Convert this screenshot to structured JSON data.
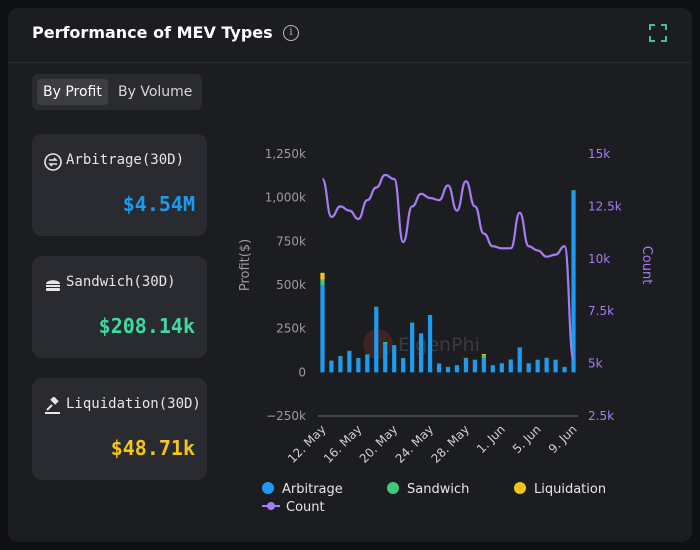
{
  "header": {
    "title": "Performance of MEV Types",
    "info_icon": "info-icon",
    "expand_icon": "expand-icon"
  },
  "toggle": {
    "options": [
      "By Profit",
      "By Volume"
    ],
    "active": "By Profit"
  },
  "stats": [
    {
      "label": "Arbitrage(30D)",
      "value": "$4.54M",
      "color": "#1a9bf0",
      "icon": "arbitrage-icon"
    },
    {
      "label": "Sandwich(30D)",
      "value": "$208.14k",
      "color": "#3fd9a1",
      "icon": "sandwich-icon"
    },
    {
      "label": "Liquidation(30D)",
      "value": "$48.71k",
      "color": "#f5c518",
      "icon": "gavel-icon"
    }
  ],
  "watermark": "EigenPhi",
  "colors": {
    "arbitrage": "#1e9bf0",
    "sandwich": "#3ec97e",
    "liquidation": "#f5c518",
    "count": "#a87bf2"
  },
  "chart_data": {
    "type": "bar",
    "stacked": true,
    "x_tick_labels": [
      "12. May",
      "16. May",
      "20. May",
      "24. May",
      "28. May",
      "1. Jun",
      "5. Jun",
      "9. Jun"
    ],
    "y_left": {
      "label": "Profit($)",
      "ticks": [
        "1,250k",
        "1,000k",
        "750k",
        "500k",
        "250k",
        "0",
        "−250k"
      ],
      "range": [
        -250000,
        1250000
      ]
    },
    "y_right": {
      "label": "Count",
      "ticks": [
        "15k",
        "12.5k",
        "10k",
        "7.5k",
        "5k",
        "2.5k"
      ],
      "range": [
        2500,
        15000
      ]
    },
    "grid": false,
    "legend_position": "bottom",
    "series": [
      {
        "name": "Arbitrage",
        "axis": "left",
        "kind": "bar",
        "values": [
          500000,
          65000,
          90000,
          120000,
          80000,
          100000,
          370000,
          165000,
          150000,
          80000,
          280000,
          220000,
          325000,
          50000,
          30000,
          40000,
          80000,
          70000,
          80000,
          40000,
          50000,
          70000,
          140000,
          50000,
          70000,
          80000,
          70000,
          30000,
          1040000
        ]
      },
      {
        "name": "Sandwich",
        "axis": "left",
        "kind": "bar",
        "values": [
          30000,
          2000,
          3000,
          3000,
          2000,
          3000,
          5000,
          8000,
          5000,
          2000,
          4000,
          3000,
          3000,
          1000,
          1000,
          1000,
          3000,
          2000,
          20000,
          1000,
          2000,
          3000,
          3000,
          2000,
          2000,
          3000,
          2000,
          1000,
          3000
        ]
      },
      {
        "name": "Liquidation",
        "axis": "left",
        "kind": "bar",
        "values": [
          40000,
          0,
          0,
          0,
          0,
          0,
          0,
          0,
          0,
          0,
          0,
          0,
          0,
          0,
          0,
          0,
          0,
          0,
          5000,
          0,
          0,
          0,
          0,
          0,
          0,
          0,
          0,
          0,
          0
        ]
      },
      {
        "name": "Count",
        "axis": "right",
        "kind": "line",
        "values": [
          13800,
          12000,
          12500,
          12300,
          11900,
          12800,
          13400,
          14000,
          13800,
          10800,
          12500,
          13100,
          12900,
          12800,
          13500,
          12300,
          13700,
          12500,
          11200,
          10600,
          10500,
          10500,
          12200,
          10600,
          10400,
          10100,
          10200,
          10600,
          5200
        ]
      }
    ]
  },
  "legend": [
    "Arbitrage",
    "Sandwich",
    "Liquidation",
    "Count"
  ]
}
